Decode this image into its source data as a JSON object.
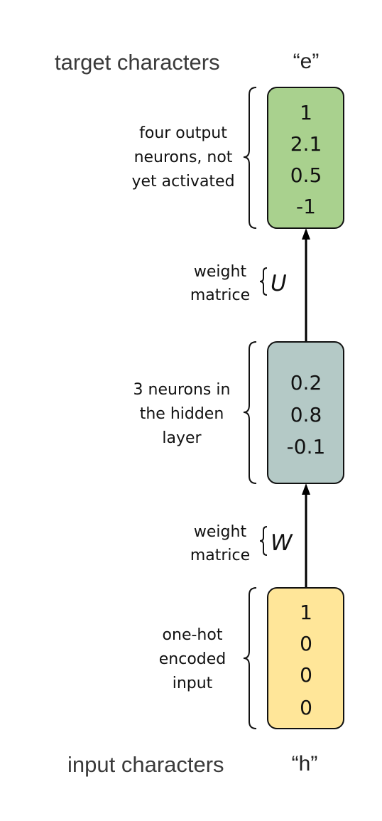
{
  "header": {
    "target_label": "target characters",
    "target_char": "“e”"
  },
  "footer": {
    "input_label": "input characters",
    "input_char": "“h”"
  },
  "output_layer": {
    "description": [
      "four output",
      "neurons, not",
      "yet activated"
    ],
    "values": [
      "1",
      "2.1",
      "0.5",
      "-1"
    ],
    "fill_color": "#a9d18e"
  },
  "weight_u": {
    "label": [
      "weight",
      "matrice"
    ],
    "symbol": "U"
  },
  "hidden_layer": {
    "description": [
      "3 neurons in",
      "the hidden",
      "layer"
    ],
    "values": [
      "0.2",
      "0.8",
      "-0.1"
    ],
    "fill_color": "#b4c9c6"
  },
  "weight_w": {
    "label": [
      "weight",
      "matrice"
    ],
    "symbol": "W"
  },
  "input_layer": {
    "description": [
      "one-hot",
      "encoded",
      "input"
    ],
    "values": [
      "1",
      "0",
      "0",
      "0"
    ],
    "fill_color": "#ffe699"
  }
}
